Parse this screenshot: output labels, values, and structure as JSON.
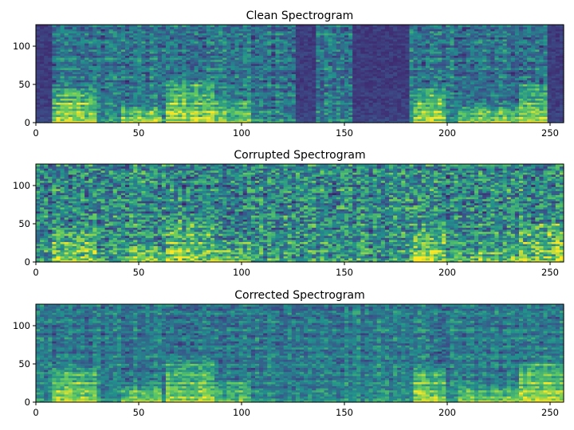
{
  "chart_data": [
    {
      "type": "heatmap",
      "title": "Clean Spectrogram",
      "xlabel": "",
      "ylabel": "",
      "xlim": [
        0,
        257
      ],
      "ylim": [
        0,
        128
      ],
      "x_ticks": [
        "0",
        "50",
        "100",
        "150",
        "200",
        "250"
      ],
      "y_ticks": [
        "0",
        "50",
        "100"
      ],
      "colormap": "viridis",
      "silence_segments": [
        [
          0,
          8
        ],
        [
          127,
          137
        ],
        [
          154,
          181
        ],
        [
          250,
          257
        ]
      ],
      "speech_bursts": [
        {
          "x": [
            8,
            30
          ],
          "y": [
            0,
            45
          ],
          "level": 1.0
        },
        {
          "x": [
            41,
            62
          ],
          "y": [
            0,
            22
          ],
          "level": 0.95
        },
        {
          "x": [
            63,
            86
          ],
          "y": [
            0,
            55
          ],
          "level": 1.0
        },
        {
          "x": [
            86,
            105
          ],
          "y": [
            0,
            30
          ],
          "level": 0.7
        },
        {
          "x": [
            183,
            200
          ],
          "y": [
            0,
            45
          ],
          "level": 1.0
        },
        {
          "x": [
            205,
            236
          ],
          "y": [
            0,
            22
          ],
          "level": 0.85
        },
        {
          "x": [
            236,
            257
          ],
          "y": [
            0,
            50
          ],
          "level": 1.0
        }
      ]
    },
    {
      "type": "heatmap",
      "title": "Corrupted Spectrogram",
      "xlabel": "",
      "ylabel": "",
      "xlim": [
        0,
        257
      ],
      "ylim": [
        0,
        128
      ],
      "x_ticks": [
        "0",
        "50",
        "100",
        "150",
        "200",
        "250"
      ],
      "y_ticks": [
        "0",
        "50",
        "100"
      ],
      "colormap": "viridis",
      "silence_segments": [],
      "speech_bursts": [
        {
          "x": [
            8,
            30
          ],
          "y": [
            0,
            45
          ],
          "level": 0.6
        },
        {
          "x": [
            41,
            62
          ],
          "y": [
            0,
            22
          ],
          "level": 0.5
        },
        {
          "x": [
            63,
            86
          ],
          "y": [
            0,
            55
          ],
          "level": 0.65
        },
        {
          "x": [
            86,
            105
          ],
          "y": [
            0,
            30
          ],
          "level": 0.4
        },
        {
          "x": [
            183,
            200
          ],
          "y": [
            0,
            45
          ],
          "level": 0.6
        },
        {
          "x": [
            205,
            236
          ],
          "y": [
            0,
            22
          ],
          "level": 0.45
        },
        {
          "x": [
            236,
            257
          ],
          "y": [
            0,
            50
          ],
          "level": 0.65
        }
      ]
    },
    {
      "type": "heatmap",
      "title": "Corrected Spectrogram",
      "xlabel": "",
      "ylabel": "",
      "xlim": [
        0,
        257
      ],
      "ylim": [
        0,
        128
      ],
      "x_ticks": [
        "0",
        "50",
        "100",
        "150",
        "200",
        "250"
      ],
      "y_ticks": [
        "0",
        "50",
        "100"
      ],
      "colormap": "viridis",
      "silence_segments": [],
      "speech_bursts": [
        {
          "x": [
            8,
            30
          ],
          "y": [
            0,
            45
          ],
          "level": 0.9
        },
        {
          "x": [
            41,
            62
          ],
          "y": [
            0,
            22
          ],
          "level": 0.8
        },
        {
          "x": [
            63,
            86
          ],
          "y": [
            0,
            55
          ],
          "level": 0.9
        },
        {
          "x": [
            86,
            105
          ],
          "y": [
            0,
            30
          ],
          "level": 0.55
        },
        {
          "x": [
            183,
            200
          ],
          "y": [
            0,
            45
          ],
          "level": 0.9
        },
        {
          "x": [
            205,
            236
          ],
          "y": [
            0,
            22
          ],
          "level": 0.7
        },
        {
          "x": [
            236,
            257
          ],
          "y": [
            0,
            50
          ],
          "level": 0.9
        }
      ]
    }
  ]
}
